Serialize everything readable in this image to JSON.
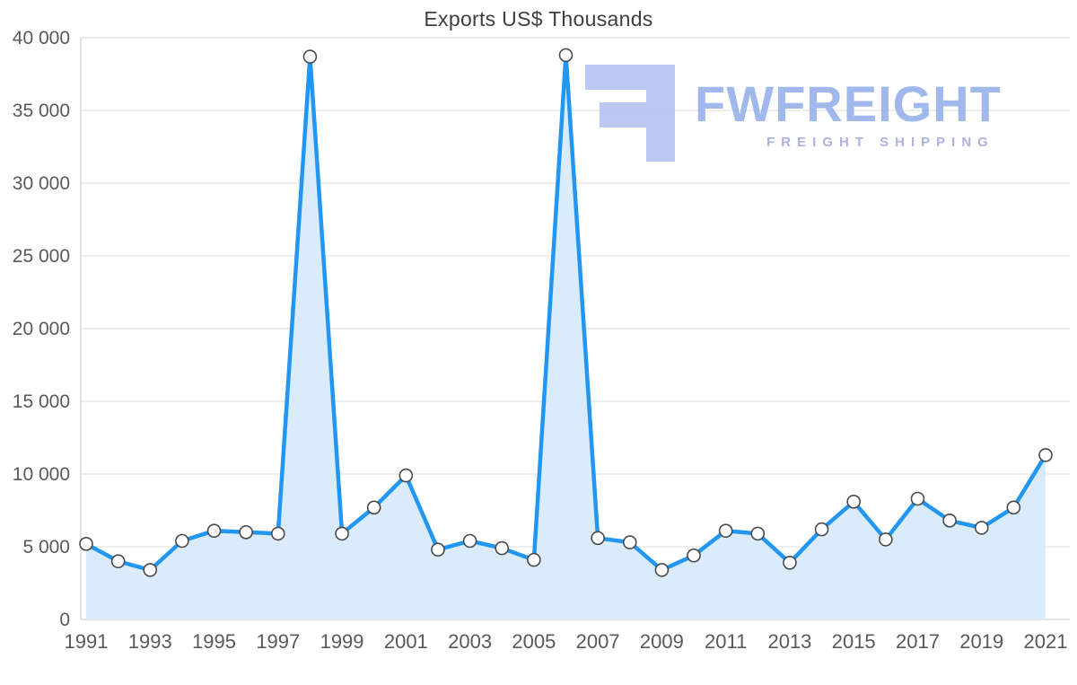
{
  "page": {
    "background": "#ffffff"
  },
  "watermark": {
    "brand": "FWFREIGHT",
    "tagline": "FREIGHT SHIPPING",
    "glyph_color": "#b7c6f2",
    "brand_color": "#9db5ec",
    "tagline_color": "#a9aee0"
  },
  "chart_data": {
    "type": "area",
    "title": "Exports US$ Thousands",
    "xlabel": "",
    "ylabel": "",
    "x": [
      1991,
      1992,
      1993,
      1994,
      1995,
      1996,
      1997,
      1998,
      1999,
      2000,
      2001,
      2002,
      2003,
      2004,
      2005,
      2006,
      2007,
      2008,
      2009,
      2010,
      2011,
      2012,
      2013,
      2014,
      2015,
      2016,
      2017,
      2018,
      2019,
      2020,
      2021
    ],
    "values": [
      5200,
      4000,
      3400,
      5400,
      6100,
      6000,
      5900,
      38700,
      5900,
      7700,
      9900,
      4800,
      5400,
      4900,
      4100,
      38800,
      5600,
      5300,
      3400,
      4400,
      6100,
      5900,
      3900,
      6200,
      8100,
      5500,
      8300,
      6800,
      6300,
      7700,
      11300
    ],
    "ylim": [
      0,
      40000
    ],
    "ytick_step": 5000,
    "ytick_labels": [
      "0",
      "5 000",
      "10 000",
      "15 000",
      "20 000",
      "25 000",
      "30 000",
      "35 000",
      "40 000"
    ],
    "xtick_labels": [
      "1991",
      "1993",
      "1995",
      "1997",
      "1999",
      "2001",
      "2003",
      "2005",
      "2007",
      "2009",
      "2011",
      "2013",
      "2015",
      "2017",
      "2019",
      "2021"
    ],
    "xtick_every": 2,
    "grid": true,
    "legend": "none",
    "line_color": "#2196f3",
    "fill_color": "#daecfb",
    "marker_fill": "#ffffff",
    "marker_stroke": "#4a4a4a",
    "grid_color": "#dcdcdc",
    "axis_line_color": "#c9c9c9",
    "tick_label_color": "#595959"
  }
}
